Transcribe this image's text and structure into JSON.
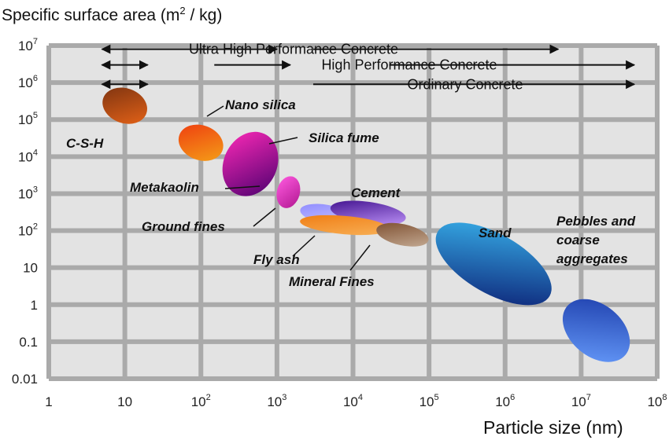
{
  "chart_data": {
    "type": "scatter",
    "title": "",
    "ylabel": {
      "text": "Specific surface area (m",
      "sup": "2",
      "tail": " / kg)"
    },
    "xlabel": "Particle size (nm)",
    "x_scale": "log",
    "y_scale": "log",
    "xlim": [
      1,
      100000000
    ],
    "ylim": [
      0.01,
      10000000
    ],
    "x_ticks": [
      {
        "base": "1",
        "exp": ""
      },
      {
        "base": "10",
        "exp": ""
      },
      {
        "base": "10",
        "exp": "2"
      },
      {
        "base": "10",
        "exp": "3"
      },
      {
        "base": "10",
        "exp": "4"
      },
      {
        "base": "10",
        "exp": "5"
      },
      {
        "base": "10",
        "exp": "6"
      },
      {
        "base": "10",
        "exp": "7"
      },
      {
        "base": "10",
        "exp": "8"
      }
    ],
    "y_ticks": [
      {
        "base": "0.01",
        "exp": ""
      },
      {
        "base": "0.1",
        "exp": ""
      },
      {
        "base": "1",
        "exp": ""
      },
      {
        "base": "10",
        "exp": ""
      },
      {
        "base": "10",
        "exp": "2"
      },
      {
        "base": "10",
        "exp": "3"
      },
      {
        "base": "10",
        "exp": "4"
      },
      {
        "base": "10",
        "exp": "5"
      },
      {
        "base": "10",
        "exp": "6"
      },
      {
        "base": "10",
        "exp": "7"
      }
    ],
    "grid": true,
    "ranges": [
      {
        "label": "Ultra High Performance Concrete",
        "segments": [
          [
            5,
            1000
          ],
          [
            3000,
            5000000
          ]
        ],
        "y": 8000000
      },
      {
        "label": "High Performance Concrete",
        "segments": [
          [
            5,
            20
          ],
          [
            150,
            1500
          ],
          [
            30000,
            50000000
          ]
        ],
        "y": 3000000
      },
      {
        "label": "Ordinary Concrete",
        "segments": [
          [
            5,
            20
          ],
          [
            3000,
            50000000
          ]
        ],
        "y": 900000
      }
    ],
    "materials": [
      {
        "name": "C-S-H",
        "x_range": [
          5,
          20
        ],
        "y_range": [
          80000,
          700000
        ],
        "colors": [
          "#7a3210",
          "#e86418"
        ]
      },
      {
        "name": "Nano silica",
        "x_range": [
          50,
          200
        ],
        "y_range": [
          8000,
          70000
        ],
        "colors": [
          "#ee3a10",
          "#f5a318"
        ]
      },
      {
        "name": "Silica fume",
        "x_range": [
          200,
          1000
        ],
        "y_range": [
          800,
          50000
        ],
        "colors": [
          "#ff2ab8",
          "#4a006e"
        ]
      },
      {
        "name": "Metakaolin",
        "x_range": [
          1000,
          2000
        ],
        "y_range": [
          400,
          3000
        ],
        "colors": [
          "#ff5ae0",
          "#b21892"
        ]
      },
      {
        "name": "Ground fines",
        "x_range": [
          2000,
          10000
        ],
        "y_range": [
          150,
          500
        ],
        "colors": [
          "#8a88ff",
          "#cfc8ff"
        ]
      },
      {
        "name": "Cement",
        "x_range": [
          5000,
          50000
        ],
        "y_range": [
          150,
          600
        ],
        "colors": [
          "#3a0a88",
          "#c69cff"
        ]
      },
      {
        "name": "Fly ash",
        "x_range": [
          2000,
          30000
        ],
        "y_range": [
          80,
          250
        ],
        "colors": [
          "#f07a10",
          "#f8b35a"
        ]
      },
      {
        "name": "Mineral Fines",
        "x_range": [
          20000,
          100000
        ],
        "y_range": [
          40,
          150
        ],
        "colors": [
          "#7a4a2a",
          "#c8b09a"
        ]
      },
      {
        "name": "Sand",
        "x_range": [
          100000,
          5000000
        ],
        "y_range": [
          2,
          80
        ],
        "colors": [
          "#3ab8f0",
          "#0a1a70"
        ]
      },
      {
        "name": "Pebbles and coarse aggregates",
        "x_range": [
          5000000,
          50000000
        ],
        "y_range": [
          0.04,
          1
        ],
        "colors": [
          "#1a3aa8",
          "#6aa0ff"
        ]
      }
    ]
  }
}
